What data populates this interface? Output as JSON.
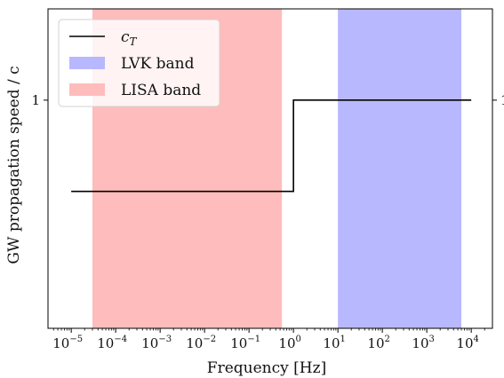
{
  "chart_data": {
    "type": "line",
    "xscale": "log",
    "xlabel": "Frequency [Hz]",
    "ylabel": "GW propagation speed / c",
    "x_ticks": [
      {
        "base": "10",
        "exp": "−5",
        "value": 1e-05
      },
      {
        "base": "10",
        "exp": "−4",
        "value": 0.0001
      },
      {
        "base": "10",
        "exp": "−3",
        "value": 0.001
      },
      {
        "base": "10",
        "exp": "−2",
        "value": 0.01
      },
      {
        "base": "10",
        "exp": "−1",
        "value": 0.1
      },
      {
        "base": "10",
        "exp": "0",
        "value": 1
      },
      {
        "base": "10",
        "exp": "1",
        "value": 10
      },
      {
        "base": "10",
        "exp": "2",
        "value": 100
      },
      {
        "base": "10",
        "exp": "3",
        "value": 1000
      },
      {
        "base": "10",
        "exp": "4",
        "value": 10000
      }
    ],
    "y_ticks": [
      {
        "label": "1",
        "value": 1.0
      }
    ],
    "xlim": [
      3e-06,
      30000.0
    ],
    "ylim": [
      0.8,
      1.08
    ],
    "grid": false,
    "legend_position": "top-left",
    "series": [
      {
        "name": "c_T",
        "color": "#000000",
        "points": [
          [
            1e-05,
            0.92
          ],
          [
            1.0,
            0.92
          ],
          [
            1.0,
            1.0
          ],
          [
            10000,
            1.0
          ]
        ]
      }
    ],
    "bands": [
      {
        "name": "LVK band",
        "color": "#b8b8ff",
        "x_start": 10,
        "x_end": 6000
      },
      {
        "name": "LISA band",
        "color": "#ffbcbc",
        "x_start": 3e-05,
        "x_end": 0.55
      }
    ],
    "legend": [
      {
        "kind": "line",
        "label_base": "c",
        "label_sub": "T",
        "color": "#000000"
      },
      {
        "kind": "patch",
        "label": "LVK band",
        "color": "#b8b8ff"
      },
      {
        "kind": "patch",
        "label": "LISA band",
        "color": "#ffbcbc"
      }
    ],
    "right_ytick_label": "1"
  }
}
